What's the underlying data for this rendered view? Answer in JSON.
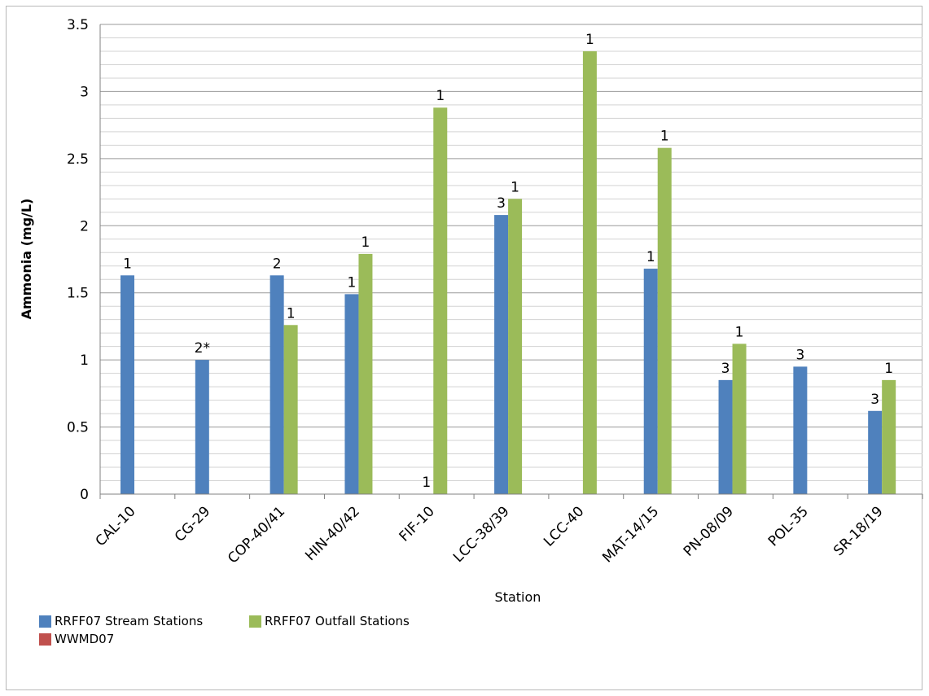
{
  "chart_data": {
    "type": "bar",
    "title": "",
    "xlabel": "Station",
    "ylabel": "Ammonia (mg/L)",
    "ylim": [
      0,
      3.5
    ],
    "yticks": [
      "0",
      "0.5",
      "1",
      "1.5",
      "2",
      "2.5",
      "3",
      "3.5"
    ],
    "major_tick_step": 0.5,
    "minor_gridlines": 0.1,
    "grid": true,
    "legend_position": "bottom-left",
    "categories": [
      "CAL-10",
      "CG-29",
      "COP-40/41",
      "HIN-40/42",
      "FIF-10",
      "LCC-38/39",
      "LCC-40",
      "MAT-14/15",
      "PN-08/09",
      "POL-35",
      "SR-18/19"
    ],
    "series": [
      {
        "name": "RRFF07 Stream Stations",
        "color": "#4f81bd",
        "values": [
          1.63,
          1.0,
          1.63,
          1.49,
          null,
          2.08,
          null,
          1.68,
          0.85,
          0.95,
          0.62
        ],
        "labels": [
          "1",
          "2*",
          "2",
          "1",
          "1",
          "3",
          null,
          "1",
          "3",
          "3",
          "3"
        ]
      },
      {
        "name": "RRFF07 Outfall Stations",
        "color": "#9bbb59",
        "values": [
          null,
          null,
          1.26,
          1.79,
          2.88,
          2.2,
          3.3,
          2.58,
          1.12,
          null,
          0.85
        ],
        "labels": [
          null,
          null,
          "1",
          "1",
          "1",
          "1",
          "1",
          "1",
          "1",
          null,
          "1"
        ]
      },
      {
        "name": "WWMD07",
        "color": "#c0504d",
        "values": [
          null,
          null,
          null,
          null,
          null,
          null,
          null,
          null,
          null,
          null,
          null
        ],
        "labels": [
          null,
          null,
          null,
          null,
          null,
          null,
          null,
          null,
          null,
          null,
          null
        ]
      }
    ]
  }
}
